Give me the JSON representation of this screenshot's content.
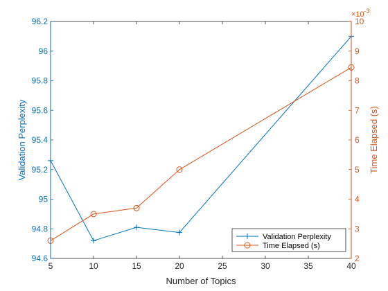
{
  "chart_data": {
    "type": "line",
    "title": "",
    "xlabel": "Number of Topics",
    "ylabel_left": "Validation Perplexity",
    "ylabel_right": "Time Elapsed (s)",
    "xlim": [
      5,
      40
    ],
    "ylim_left": [
      94.6,
      96.2
    ],
    "ylim_right": [
      0.002,
      0.01
    ],
    "right_exponent_label": "×10",
    "right_exponent_power": "-3",
    "x_ticks": [
      5,
      10,
      15,
      20,
      25,
      30,
      35,
      40
    ],
    "y_left_ticks": [
      94.6,
      94.8,
      95,
      95.2,
      95.4,
      95.6,
      95.8,
      96,
      96.2
    ],
    "y_left_tick_labels": [
      "94.6",
      "94.8",
      "95",
      "95.2",
      "95.4",
      "95.6",
      "95.8",
      "96",
      "96.2"
    ],
    "y_right_ticks": [
      2,
      3,
      4,
      5,
      6,
      7,
      8,
      9,
      10
    ],
    "grid": false,
    "legend_position": "bottom-right",
    "series": [
      {
        "name": "Validation Perplexity",
        "axis": "left",
        "color": "#0072BD",
        "marker": "plus",
        "x": [
          5,
          10,
          15,
          20,
          40
        ],
        "values": [
          95.26,
          94.72,
          94.81,
          94.775,
          96.1
        ]
      },
      {
        "name": "Time Elapsed (s)",
        "axis": "right",
        "color": "#D95319",
        "marker": "circle",
        "x": [
          5,
          10,
          15,
          20,
          40
        ],
        "values": [
          0.0026,
          0.0035,
          0.0037,
          0.005,
          0.00845
        ]
      }
    ]
  }
}
